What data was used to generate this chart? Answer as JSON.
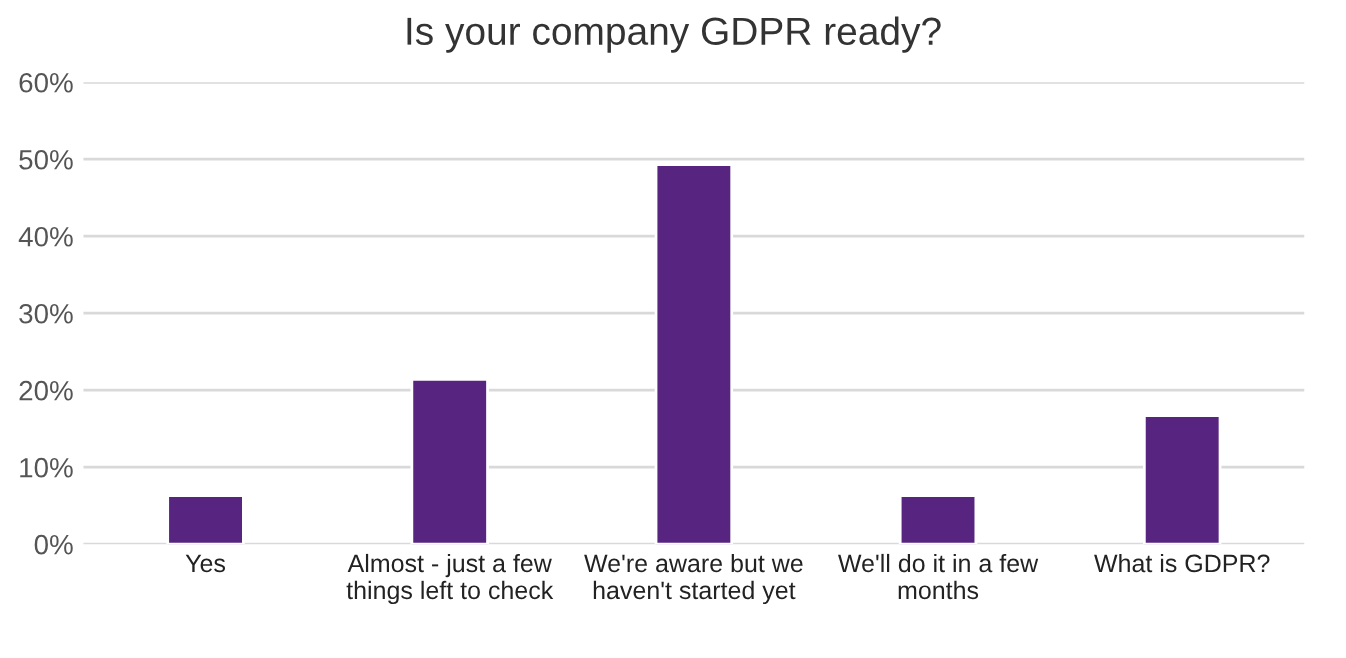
{
  "chart_data": {
    "type": "bar",
    "title": "Is your company GDPR ready?",
    "categories": [
      "Yes",
      "Almost - just a few things left to check",
      "We're aware but we haven't started yet",
      "We'll do it in a few months",
      "What is GDPR?"
    ],
    "values": [
      6.3,
      21.4,
      49.3,
      6.3,
      16.7
    ],
    "color": "#57257f",
    "ylim": [
      0,
      60
    ],
    "yticks": [
      {
        "value": 0,
        "label": "0%"
      },
      {
        "value": 10,
        "label": "10%"
      },
      {
        "value": 20,
        "label": "20%"
      },
      {
        "value": 30,
        "label": "30%"
      },
      {
        "value": 40,
        "label": "40%"
      },
      {
        "value": 50,
        "label": "50%"
      },
      {
        "value": 60,
        "label": "60%"
      }
    ],
    "grid": "y"
  }
}
